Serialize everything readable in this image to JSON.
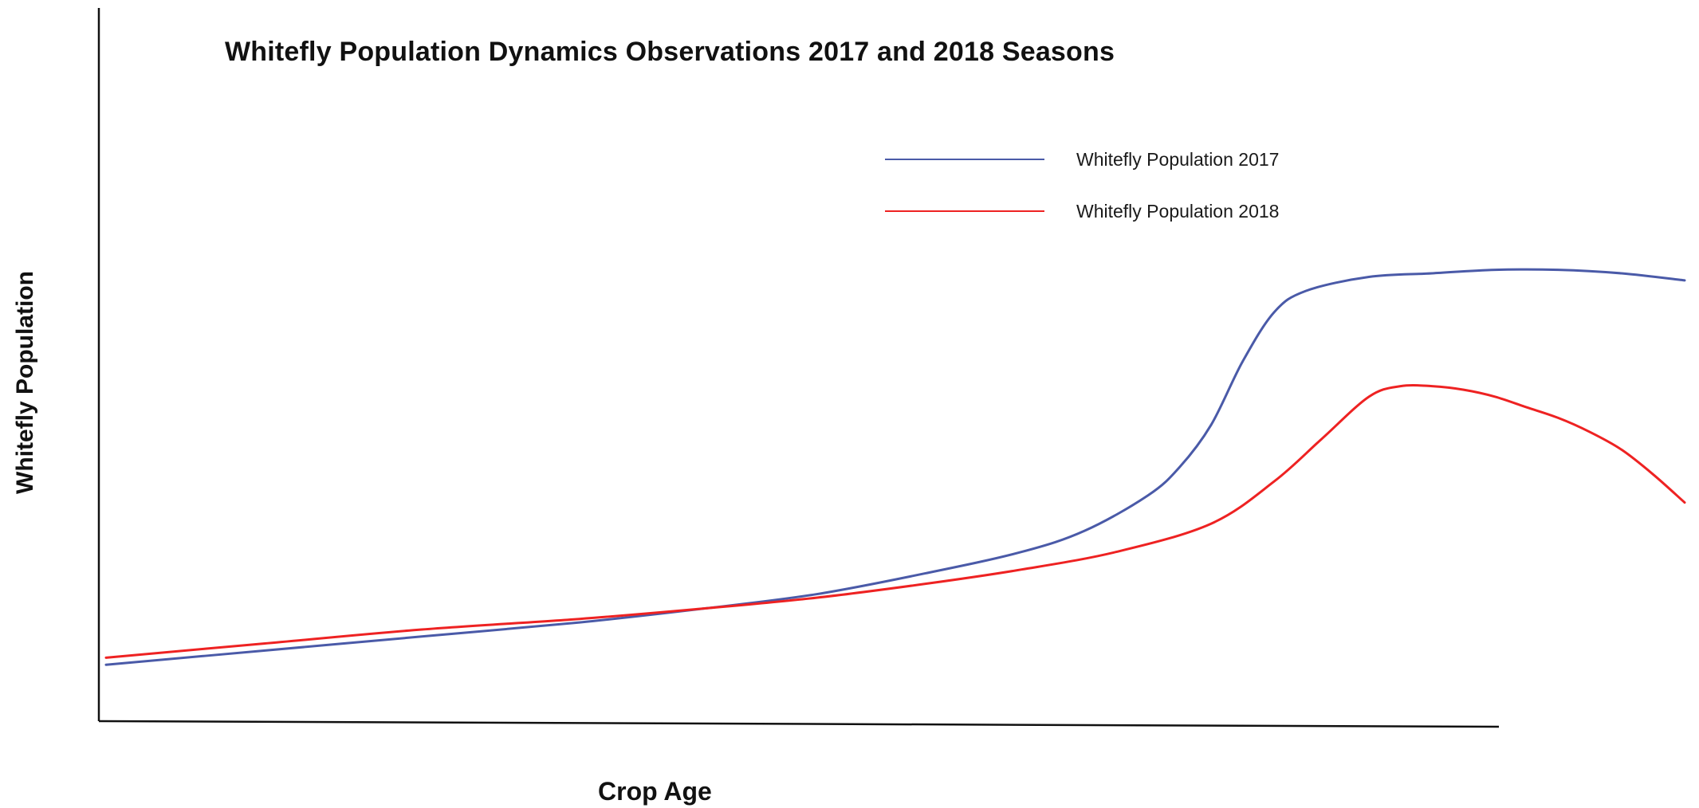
{
  "chart_data": {
    "type": "line",
    "title": "Whitefly Population Dynamics Observations 2017 and 2018 Seasons",
    "xlabel": "Crop Age",
    "ylabel": "Whitefly Population",
    "xlim": [
      0,
      100
    ],
    "ylim": [
      0,
      100
    ],
    "ticks_shown": false,
    "grid": false,
    "legend_position": "top-right",
    "series": [
      {
        "name": "Whitefly Population 2017",
        "color": "#4a5aa8",
        "x": [
          0,
          10,
          20,
          30,
          38,
          45,
          52,
          58,
          62,
          66,
          68,
          70,
          72,
          74,
          76,
          80,
          84,
          88,
          92,
          96,
          100
        ],
        "y": [
          8,
          10,
          12,
          14,
          16,
          18,
          21,
          24,
          27,
          32,
          36,
          42,
          51,
          58,
          61,
          63,
          63.5,
          64,
          64,
          63.5,
          62.5
        ]
      },
      {
        "name": "Whitefly Population 2018",
        "color": "#ee2222",
        "x": [
          0,
          10,
          20,
          30,
          38,
          45,
          52,
          58,
          64,
          70,
          74,
          77,
          80,
          82,
          84,
          86,
          88,
          90,
          92,
          94,
          96,
          98,
          100
        ],
        "y": [
          9,
          11,
          13,
          14.5,
          16,
          17.5,
          19.5,
          21.5,
          24,
          28,
          34,
          40,
          46,
          47.5,
          47.5,
          47,
          46,
          44.5,
          43,
          41,
          38.5,
          35,
          31
        ]
      }
    ]
  }
}
